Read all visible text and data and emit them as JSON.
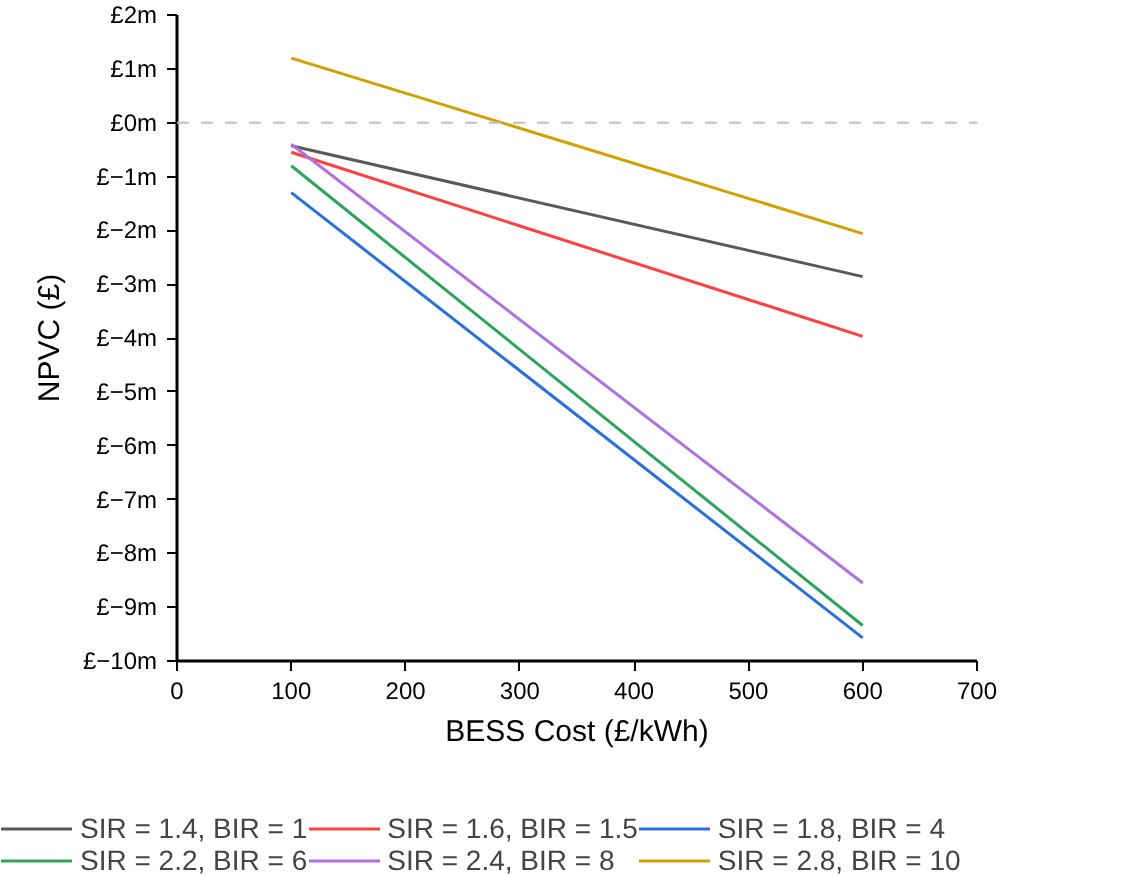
{
  "chart_data": {
    "type": "line",
    "xlabel": "BESS Cost (£/kWh)",
    "ylabel": "NPVC (£)",
    "x": [
      100,
      600
    ],
    "series": [
      {
        "name": "SIR = 1.4, BIR = 1",
        "color": "#595959",
        "values": [
          -0.43,
          -2.86
        ]
      },
      {
        "name": "SIR = 1.6, BIR = 1.5",
        "color": "#ff4040",
        "values": [
          -0.55,
          -3.97
        ]
      },
      {
        "name": "SIR = 1.8, BIR = 4",
        "color": "#2a6fdb",
        "values": [
          -1.3,
          -9.57
        ]
      },
      {
        "name": "SIR = 2.2, BIR = 6",
        "color": "#2aa55a",
        "values": [
          -0.8,
          -9.34
        ]
      },
      {
        "name": "SIR = 2.4, BIR = 8",
        "color": "#b070e0",
        "values": [
          -0.4,
          -8.55
        ]
      },
      {
        "name": "SIR = 2.8, BIR = 10",
        "color": "#d4a000",
        "values": [
          1.2,
          -2.06
        ]
      }
    ],
    "xlim": [
      0,
      700
    ],
    "xticks": [
      0,
      100,
      200,
      300,
      400,
      500,
      600,
      700
    ],
    "ylim": [
      -10,
      2
    ],
    "yticks": [
      {
        "value": -10,
        "label": "£−10m"
      },
      {
        "value": -9,
        "label": "£−9m"
      },
      {
        "value": -8,
        "label": "£−8m"
      },
      {
        "value": -7,
        "label": "£−7m"
      },
      {
        "value": -6,
        "label": "£−6m"
      },
      {
        "value": -5,
        "label": "£−5m"
      },
      {
        "value": -4,
        "label": "£−4m"
      },
      {
        "value": -3,
        "label": "£−3m"
      },
      {
        "value": -2,
        "label": "£−2m"
      },
      {
        "value": -1,
        "label": "£−1m"
      },
      {
        "value": 0,
        "label": "£0m"
      },
      {
        "value": 1,
        "label": "£1m"
      },
      {
        "value": 2,
        "label": "£2m"
      }
    ],
    "ref_lines": [
      {
        "axis": "y",
        "value": 0,
        "color": "#c0c0c0",
        "line_style": "dashed"
      }
    ],
    "grid": false,
    "legend": "bottom",
    "marker": "none",
    "line_style": "solid"
  }
}
